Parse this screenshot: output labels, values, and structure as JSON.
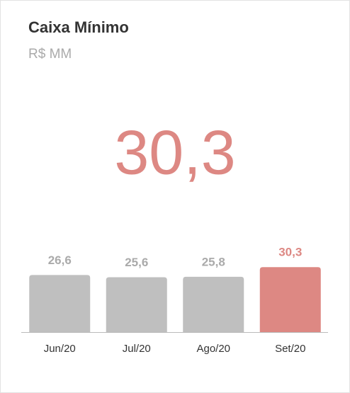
{
  "chart_data": {
    "type": "bar",
    "title": "Caixa Mínimo",
    "subtitle": "R$ MM",
    "kpi": "30,3",
    "categories": [
      "Jun/20",
      "Jul/20",
      "Ago/20",
      "Set/20"
    ],
    "values": [
      26.6,
      25.6,
      25.8,
      30.3
    ],
    "value_labels": [
      "26,6",
      "25,6",
      "25,8",
      "30,3"
    ],
    "colors": [
      "#bfbfbf",
      "#bfbfbf",
      "#bfbfbf",
      "#dd8883"
    ],
    "label_colors": [
      "#aaaaaa",
      "#aaaaaa",
      "#aaaaaa",
      "#dd8883"
    ],
    "ylim": [
      0,
      34
    ]
  }
}
